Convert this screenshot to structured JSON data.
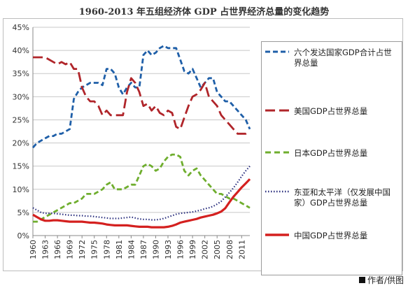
{
  "title": "1960-2013 年五组经济体 GDP 占世界经济总量的变化趋势",
  "credit": "作者/供图",
  "chart_data": {
    "type": "line",
    "x": [
      1960,
      1961,
      1962,
      1963,
      1964,
      1965,
      1966,
      1967,
      1968,
      1969,
      1970,
      1971,
      1972,
      1973,
      1974,
      1975,
      1976,
      1977,
      1978,
      1979,
      1980,
      1981,
      1982,
      1983,
      1984,
      1985,
      1986,
      1987,
      1988,
      1989,
      1990,
      1991,
      1992,
      1993,
      1994,
      1995,
      1996,
      1997,
      1998,
      1999,
      2000,
      2001,
      2002,
      2003,
      2004,
      2005,
      2006,
      2007,
      2008,
      2009,
      2010,
      2011,
      2012,
      2013
    ],
    "x_tick_labels": [
      "1960",
      "1963",
      "1966",
      "1969",
      "1972",
      "1975",
      "1978",
      "1981",
      "1984",
      "1987",
      "1990",
      "1993",
      "1996",
      "1999",
      "2002",
      "2005",
      "2008",
      "2011"
    ],
    "y_tick_labels": [
      "0%",
      "5%",
      "10%",
      "15%",
      "20%",
      "25%",
      "30%",
      "35%",
      "40%",
      "45%"
    ],
    "ylim": [
      0,
      45
    ],
    "grid": "horizontal",
    "legend_position": "right",
    "series": [
      {
        "name": "六个发达国家GDP合计占世界总量",
        "color": "#1f5fa8",
        "dash": "dashed",
        "values": [
          19,
          20,
          20.5,
          21,
          21.5,
          21.5,
          22,
          22,
          22.5,
          23,
          29.5,
          31,
          32,
          32.5,
          33,
          33,
          33,
          32.5,
          36,
          36,
          35,
          32,
          30.5,
          32,
          33,
          32,
          32,
          39,
          40,
          39,
          39.5,
          40.5,
          41,
          40.5,
          40.5,
          40.5,
          38,
          35.5,
          35,
          36,
          34,
          32,
          33,
          34,
          34,
          31,
          30,
          29,
          29,
          28,
          27,
          26,
          25,
          23
        ]
      },
      {
        "name": "美国GDP占世界总量",
        "color": "#b0252a",
        "dash": "longdash",
        "values": [
          38.5,
          38.5,
          38.5,
          38.5,
          38,
          37.5,
          37,
          37.5,
          37,
          37.5,
          36,
          36,
          32,
          30,
          29,
          29,
          28,
          26,
          27,
          26,
          26,
          26,
          26,
          31,
          34,
          33,
          31,
          28,
          28.5,
          27,
          28,
          26.5,
          26,
          27,
          26.5,
          23.5,
          23,
          25.5,
          28,
          30,
          30.5,
          31.5,
          33,
          30,
          29,
          28,
          26,
          25,
          24,
          23,
          22,
          22,
          22,
          22.5
        ]
      },
      {
        "name": "日本GDP占世界总量",
        "color": "#6fae2e",
        "dash": "dashed",
        "values": [
          3,
          3,
          3.5,
          4,
          4.5,
          5,
          5.5,
          6,
          6.5,
          7,
          7,
          7.5,
          8,
          9,
          9,
          9,
          9.5,
          10,
          11,
          11.5,
          10,
          10,
          10,
          10.5,
          11,
          11,
          13,
          15,
          15.5,
          15,
          14,
          14.5,
          16,
          17,
          17.5,
          17.5,
          17,
          14,
          13,
          14,
          14.5,
          13,
          12,
          11,
          10,
          9,
          9,
          8.5,
          8,
          8,
          7.5,
          7,
          6.5,
          6
        ]
      },
      {
        "name": "东亚和太平洋（仅发展中国家）GDP占世界总量",
        "color": "#2a2f7e",
        "dash": "dotted",
        "values": [
          6,
          5.5,
          5,
          4.8,
          4.8,
          4.8,
          4.7,
          4.6,
          4.5,
          4.4,
          4.4,
          4.3,
          4.3,
          4.2,
          4.2,
          4.1,
          4.0,
          3.9,
          3.8,
          3.7,
          3.7,
          3.7,
          3.8,
          3.9,
          4.0,
          3.8,
          3.6,
          3.5,
          3.5,
          3.4,
          3.4,
          3.5,
          3.7,
          4.0,
          4.3,
          4.6,
          4.8,
          4.9,
          5.0,
          5.1,
          5.3,
          5.5,
          5.8,
          6.0,
          6.3,
          6.8,
          7.4,
          8.3,
          9.3,
          10.3,
          11.5,
          12.8,
          14,
          15
        ]
      },
      {
        "name": "中国GDP占世界总量",
        "color": "#d4201f",
        "dash": "solid",
        "values": [
          4.5,
          4.0,
          3.5,
          3.2,
          3.2,
          3.3,
          3.3,
          3.2,
          3.1,
          3.0,
          3.0,
          3.0,
          3.0,
          2.9,
          2.8,
          2.8,
          2.7,
          2.6,
          2.4,
          2.3,
          2.2,
          2.2,
          2.2,
          2.2,
          2.1,
          2.0,
          1.9,
          1.9,
          1.9,
          1.8,
          1.8,
          1.8,
          1.8,
          1.9,
          2.1,
          2.4,
          2.8,
          3.0,
          3.2,
          3.4,
          3.6,
          3.9,
          4.1,
          4.3,
          4.5,
          4.8,
          5.2,
          5.9,
          7.2,
          8.4,
          9.4,
          10.4,
          11.3,
          12.2
        ]
      }
    ]
  }
}
